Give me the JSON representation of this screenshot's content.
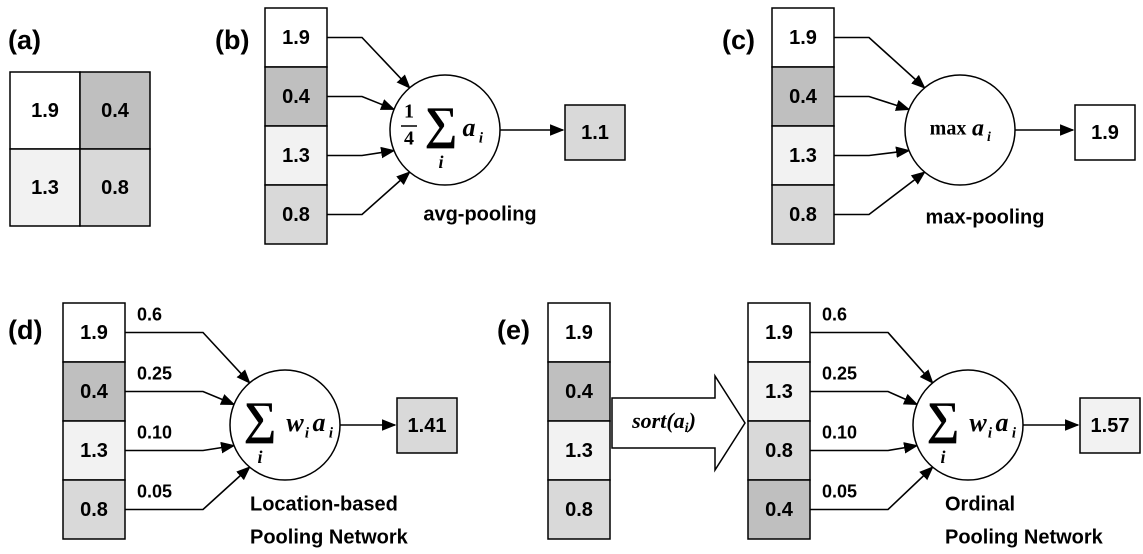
{
  "panels": [
    {
      "label": "(a)",
      "grid": [
        [
          {
            "text": "1.9",
            "color": "#ffffff"
          },
          {
            "text": "0.4",
            "color": "#bfbfbf"
          }
        ],
        [
          {
            "text": "1.3",
            "color": "#f2f2f2"
          },
          {
            "text": "0.8",
            "color": "#d9d9d9"
          }
        ]
      ]
    },
    {
      "label": "(b)",
      "inputs": [
        {
          "text": "1.9",
          "color": "#ffffff"
        },
        {
          "text": "0.4",
          "color": "#bfbfbf"
        },
        {
          "text": "1.3",
          "color": "#f2f2f2"
        },
        {
          "text": "0.8",
          "color": "#d9d9d9"
        }
      ],
      "formula": {
        "numerator": "1",
        "denominator": "4",
        "operator": "∑",
        "index": "i",
        "term": "a",
        "term_index": "i"
      },
      "output": {
        "text": "1.1",
        "color": "#d9d9d9"
      },
      "caption": [
        "avg-pooling"
      ]
    },
    {
      "label": "(c)",
      "inputs": [
        {
          "text": "1.9",
          "color": "#ffffff"
        },
        {
          "text": "0.4",
          "color": "#bfbfbf"
        },
        {
          "text": "1.3",
          "color": "#f2f2f2"
        },
        {
          "text": "0.8",
          "color": "#d9d9d9"
        }
      ],
      "formula": {
        "operator": "max",
        "term": "a",
        "term_index": "i"
      },
      "output": {
        "text": "1.9",
        "color": "#ffffff"
      },
      "caption": [
        "max-pooling"
      ]
    },
    {
      "label": "(d)",
      "inputs": [
        {
          "text": "1.9",
          "color": "#ffffff"
        },
        {
          "text": "0.4",
          "color": "#bfbfbf"
        },
        {
          "text": "1.3",
          "color": "#f2f2f2"
        },
        {
          "text": "0.8",
          "color": "#d9d9d9"
        }
      ],
      "weights": [
        "0.6",
        "0.25",
        "0.10",
        "0.05"
      ],
      "formula": {
        "operator": "∑",
        "index": "i",
        "weight": "w",
        "weight_index": "i",
        "term": "a",
        "term_index": "i"
      },
      "output": {
        "text": "1.41",
        "color": "#d9d9d9"
      },
      "caption": [
        "Location-based",
        "Pooling Network"
      ]
    },
    {
      "label": "(e)",
      "inputs": [
        {
          "text": "1.9",
          "color": "#ffffff"
        },
        {
          "text": "0.4",
          "color": "#bfbfbf"
        },
        {
          "text": "1.3",
          "color": "#f2f2f2"
        },
        {
          "text": "0.8",
          "color": "#d9d9d9"
        }
      ],
      "operation": {
        "name": "sort",
        "open": "(",
        "arg": "a",
        "arg_index": "i",
        "close": ")"
      },
      "sorted": [
        {
          "text": "1.9",
          "color": "#ffffff"
        },
        {
          "text": "1.3",
          "color": "#f2f2f2"
        },
        {
          "text": "0.8",
          "color": "#d9d9d9"
        },
        {
          "text": "0.4",
          "color": "#bfbfbf"
        }
      ],
      "weights": [
        "0.6",
        "0.25",
        "0.10",
        "0.05"
      ],
      "formula": {
        "operator": "∑",
        "index": "i",
        "weight": "w",
        "weight_index": "i",
        "term": "a",
        "term_index": "i"
      },
      "output": {
        "text": "1.57",
        "color": "#f2f2f2"
      },
      "caption": [
        "Ordinal",
        "Pooling Network"
      ]
    }
  ]
}
